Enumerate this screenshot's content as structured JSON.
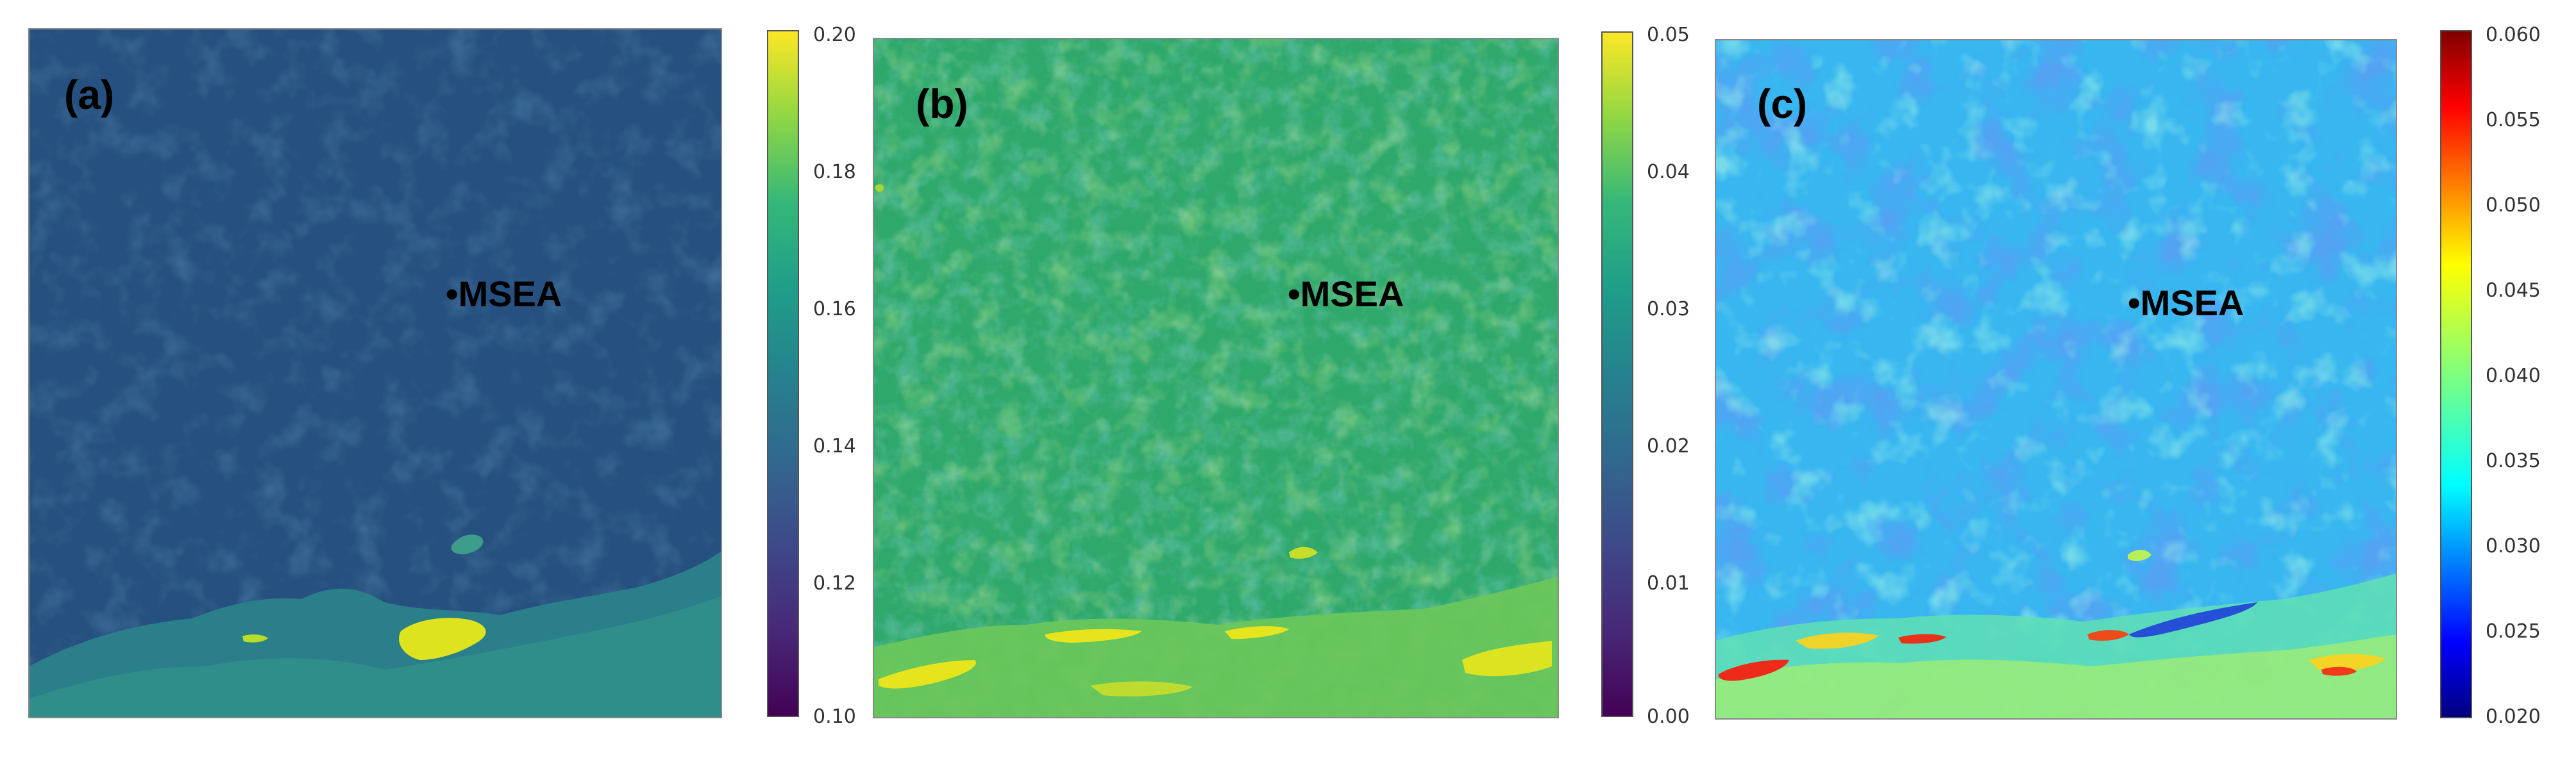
{
  "chart_data": [
    {
      "type": "heatmap",
      "panel_label": "(a)",
      "marker_label": "•MSEA",
      "colormap": "viridis",
      "colorbar": {
        "range": [
          0.1,
          0.2
        ],
        "ticks": [
          "0.20",
          "0.18",
          "0.16",
          "0.14",
          "0.12",
          "0.10"
        ]
      },
      "colors": {
        "field": "#25507f",
        "bright": "#dde31f"
      }
    },
    {
      "type": "heatmap",
      "panel_label": "(b)",
      "marker_label": "•MSEA",
      "colormap": "viridis",
      "colorbar": {
        "range": [
          0.0,
          0.05
        ],
        "ticks": [
          "0.05",
          "0.04",
          "0.03",
          "0.02",
          "0.01",
          "0.00"
        ]
      },
      "colors": {
        "field": "#2fa86b",
        "bright": "#e6e41c"
      }
    },
    {
      "type": "heatmap",
      "panel_label": "(c)",
      "marker_label": "•MSEA",
      "colormap": "jet",
      "colorbar": {
        "range": [
          0.02,
          0.06
        ],
        "ticks": [
          "0.060",
          "0.055",
          "0.050",
          "0.045",
          "0.040",
          "0.035",
          "0.030",
          "0.025",
          "0.020"
        ]
      },
      "colors": {
        "field": "#37b6f0",
        "dark": "#1f5fe0",
        "hot": "#ee2a18"
      }
    }
  ]
}
